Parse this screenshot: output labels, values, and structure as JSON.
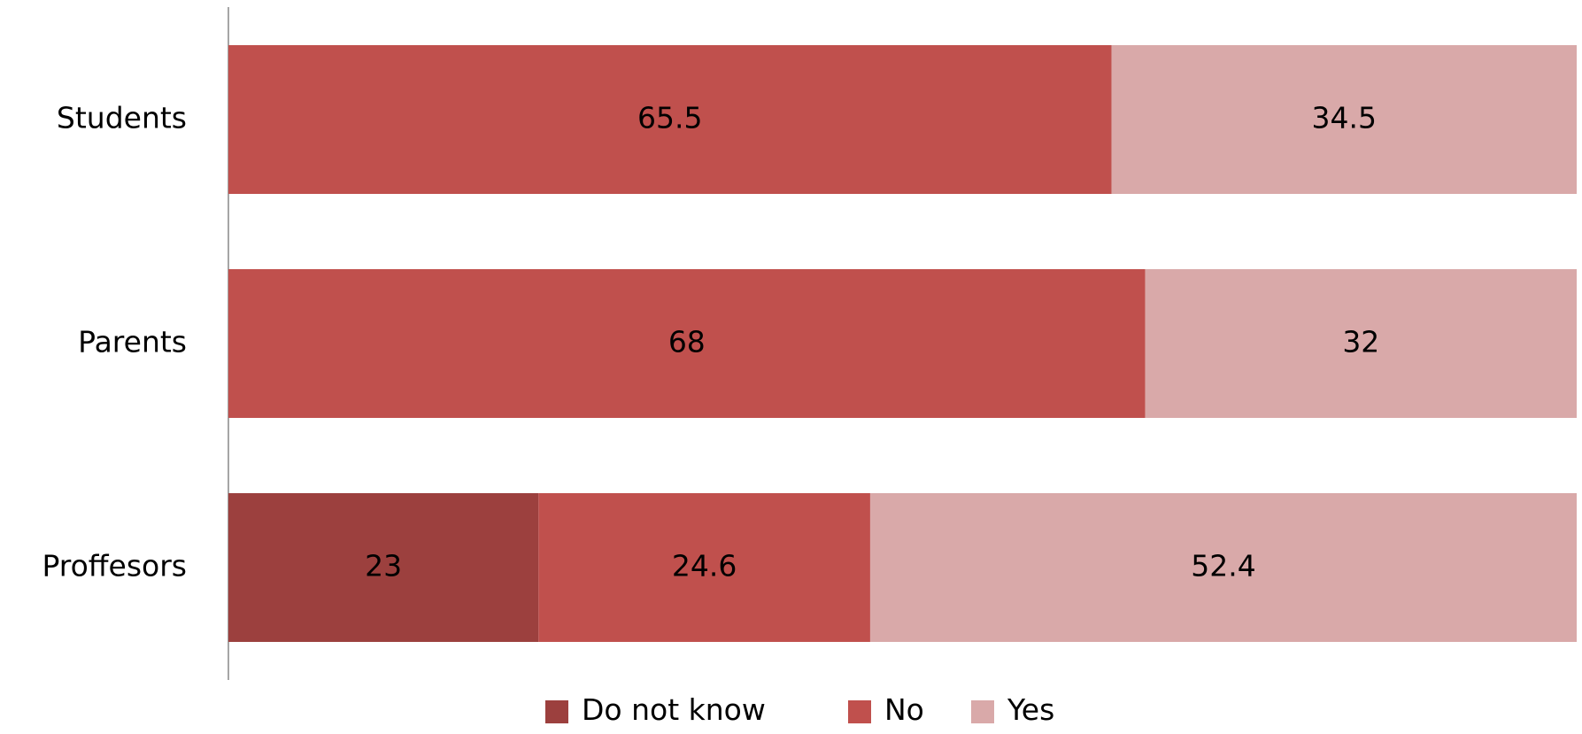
{
  "chart_data": {
    "type": "bar",
    "orientation": "horizontal",
    "stacked": true,
    "categories": [
      "Students",
      "Parents",
      "Proffesors"
    ],
    "series": [
      {
        "name": "Do not know",
        "color": "#9C403E",
        "values": [
          0,
          0,
          23
        ]
      },
      {
        "name": "No",
        "color": "#C0504D",
        "values": [
          65.5,
          68,
          24.6
        ]
      },
      {
        "name": "Yes",
        "color": "#D9A9A9",
        "values": [
          34.5,
          32,
          52.4
        ]
      }
    ],
    "data_labels": [
      [
        null,
        null,
        "23"
      ],
      [
        "65.5",
        "68",
        "24.6"
      ],
      [
        "34.5",
        "32",
        "52.4"
      ]
    ],
    "xlim": [
      0,
      100
    ],
    "grid": false,
    "legend": "bottom"
  }
}
